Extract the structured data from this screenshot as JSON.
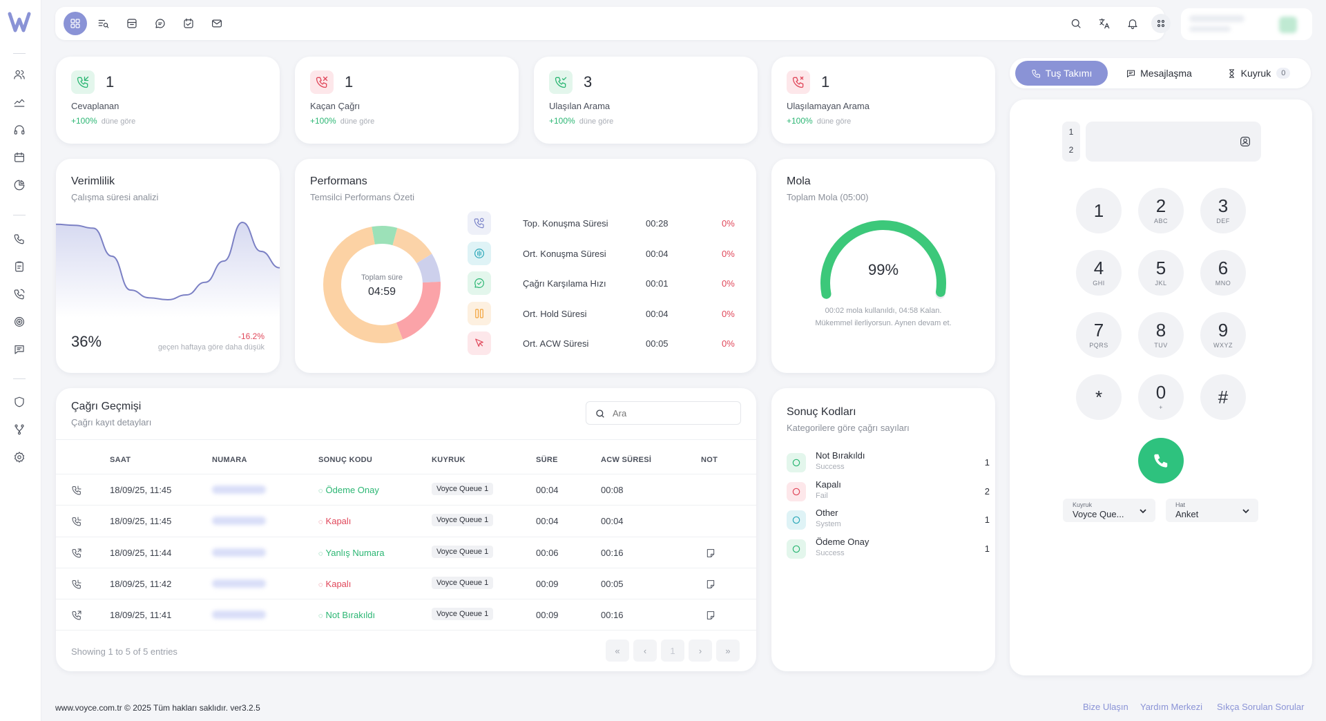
{
  "topbar": {
    "icons": [
      "dashboard-icon",
      "search-list-icon",
      "archive-icon",
      "chat-icon",
      "calendar-check-icon",
      "mail-icon"
    ],
    "right_icons": [
      "search-icon",
      "translate-icon",
      "bell-icon",
      "apps-icon"
    ]
  },
  "sidebar": {
    "icons": [
      "users-icon",
      "chart-icon",
      "headset-icon",
      "calendar-icon",
      "pie-icon",
      "phone-icon",
      "clipboard-icon",
      "phone-call-icon",
      "target-icon",
      "message-icon",
      "shield-icon",
      "branch-icon",
      "settings-icon"
    ]
  },
  "stats": [
    {
      "value": "1",
      "label": "Cevaplanan",
      "change": "+100%",
      "rel": "düne göre",
      "color": "#2bb673",
      "bg": "#e3f6ec",
      "icon": "phone-incoming-icon"
    },
    {
      "value": "1",
      "label": "Kaçan Çağrı",
      "change": "+100%",
      "rel": "düne göre",
      "color": "#e0475a",
      "bg": "#fde7ea",
      "icon": "phone-missed-icon"
    },
    {
      "value": "3",
      "label": "Ulaşılan Arama",
      "change": "+100%",
      "rel": "düne göre",
      "color": "#2bb673",
      "bg": "#e3f6ec",
      "icon": "phone-check-icon"
    },
    {
      "value": "1",
      "label": "Ulaşılamayan Arama",
      "change": "+100%",
      "rel": "düne göre",
      "color": "#e0475a",
      "bg": "#fde7ea",
      "icon": "phone-x-icon"
    }
  ],
  "efficiency": {
    "title": "Verimlilik",
    "subtitle": "Çalışma süresi analizi",
    "value": "36%",
    "change": "-16.2%",
    "change_note": "geçen haftaya göre daha düşük",
    "series": [
      0.93,
      0.92,
      0.89,
      0.6,
      0.25,
      0.17,
      0.15,
      0.2,
      0.33,
      0.55,
      0.95,
      0.65,
      0.48
    ]
  },
  "performance": {
    "title": "Performans",
    "subtitle": "Temsilci Performans Özeti",
    "donut_label": "Toplam süre",
    "donut_value": "04:59",
    "segments": [
      {
        "value": 0.07,
        "color": "#9ce1b8"
      },
      {
        "value": 0.12,
        "color": "#fbd3a8"
      },
      {
        "value": 0.08,
        "color": "#cdd0ec"
      },
      {
        "value": 0.2,
        "color": "#fba3a8"
      },
      {
        "value": 0.53,
        "color": "#fcd2a4"
      }
    ],
    "rows": [
      {
        "label": "Top. Konuşma Süresi",
        "time": "00:28",
        "pct": "0%",
        "icon": "phone-timer-icon",
        "bg": "#eef0f8",
        "color": "#7a82c8"
      },
      {
        "label": "Ort. Konuşma Süresi",
        "time": "00:04",
        "pct": "0%",
        "icon": "waveform-icon",
        "bg": "#dff3f6",
        "color": "#2aa7b8"
      },
      {
        "label": "Çağrı Karşılama Hızı",
        "time": "00:01",
        "pct": "0%",
        "icon": "check-bubble-icon",
        "bg": "#e3f6ec",
        "color": "#2bb673"
      },
      {
        "label": "Ort. Hold Süresi",
        "time": "00:04",
        "pct": "0%",
        "icon": "pause-icon",
        "bg": "#fdf0e0",
        "color": "#f2a33a"
      },
      {
        "label": "Ort. ACW Süresi",
        "time": "00:05",
        "pct": "0%",
        "icon": "cursor-icon",
        "bg": "#fde7ea",
        "color": "#e0475a"
      }
    ]
  },
  "break": {
    "title": "Mola",
    "subtitle": "Toplam Mola (05:00)",
    "value": "99%",
    "fill": 0.99,
    "note1": "00:02 mola kullanıldı, 04:58 Kalan.",
    "note2": "Mükemmel ilerliyorsun. Aynen devam et."
  },
  "history": {
    "title": "Çağrı Geçmişi",
    "subtitle": "Çağrı kayıt detayları",
    "search_placeholder": "Ara",
    "columns": [
      "SAAT",
      "NUMARA",
      "SONUÇ KODU",
      "KUYRUK",
      "SÜRE",
      "ACW SÜRESİ",
      "NOT"
    ],
    "rows": [
      {
        "time": "18/09/25, 11:45",
        "code": "Ödeme Onay",
        "ok": true,
        "queue": "Voyce Queue 1",
        "dur": "00:04",
        "acw": "00:08",
        "note": false,
        "dir": "in"
      },
      {
        "time": "18/09/25, 11:45",
        "code": "Kapalı",
        "ok": false,
        "queue": "Voyce Queue 1",
        "dur": "00:04",
        "acw": "00:04",
        "note": false,
        "dir": "in"
      },
      {
        "time": "18/09/25, 11:44",
        "code": "Yanlış Numara",
        "ok": true,
        "queue": "Voyce Queue 1",
        "dur": "00:06",
        "acw": "00:16",
        "note": true,
        "dir": "out"
      },
      {
        "time": "18/09/25, 11:42",
        "code": "Kapalı",
        "ok": false,
        "queue": "Voyce Queue 1",
        "dur": "00:09",
        "acw": "00:05",
        "note": true,
        "dir": "in"
      },
      {
        "time": "18/09/25, 11:41",
        "code": "Not Bırakıldı",
        "ok": true,
        "queue": "Voyce Queue 1",
        "dur": "00:09",
        "acw": "00:16",
        "note": true,
        "dir": "out"
      }
    ],
    "showing": "Showing 1 to 5 of 5 entries",
    "pager": [
      "«",
      "‹",
      "1",
      "›",
      "»"
    ]
  },
  "results": {
    "title": "Sonuç Kodları",
    "subtitle": "Kategorilere göre çağrı sayıları",
    "items": [
      {
        "name": "Not Bırakıldı",
        "cat": "Success",
        "count": "1",
        "color": "#2bb673",
        "bg": "#e3f6ec"
      },
      {
        "name": "Kapalı",
        "cat": "Fail",
        "count": "2",
        "color": "#e0475a",
        "bg": "#fde7ea"
      },
      {
        "name": "Other",
        "cat": "System",
        "count": "1",
        "color": "#2aa7b8",
        "bg": "#dff3f6"
      },
      {
        "name": "Ödeme Onay",
        "cat": "Success",
        "count": "1",
        "color": "#2bb673",
        "bg": "#e3f6ec"
      }
    ]
  },
  "dialer": {
    "tabs": {
      "keypad": "Tuş Takımı",
      "messaging": "Mesajlaşma",
      "queue": "Kuyruk",
      "queue_count": "0"
    },
    "lines": [
      "1",
      "2"
    ],
    "keys": [
      {
        "d": "1",
        "l": ""
      },
      {
        "d": "2",
        "l": "ABC"
      },
      {
        "d": "3",
        "l": "DEF"
      },
      {
        "d": "4",
        "l": "GHI"
      },
      {
        "d": "5",
        "l": "JKL"
      },
      {
        "d": "6",
        "l": "MNO"
      },
      {
        "d": "7",
        "l": "PQRS"
      },
      {
        "d": "8",
        "l": "TUV"
      },
      {
        "d": "9",
        "l": "WXYZ"
      },
      {
        "d": "*",
        "l": ""
      },
      {
        "d": "0",
        "l": "+"
      },
      {
        "d": "#",
        "l": ""
      }
    ],
    "queue_select": {
      "caption": "Kuyruk",
      "value": "Voyce Que..."
    },
    "line_select": {
      "caption": "Hat",
      "value": "Anket"
    },
    "call_color": "#2ec27e"
  },
  "footer": {
    "copyright": "www.voyce.com.tr © 2025 Tüm hakları saklıdır. ver3.2.5",
    "links": [
      "Bize Ulaşın",
      "Yardım Merkezi",
      "Sıkça Sorulan Sorular"
    ]
  }
}
